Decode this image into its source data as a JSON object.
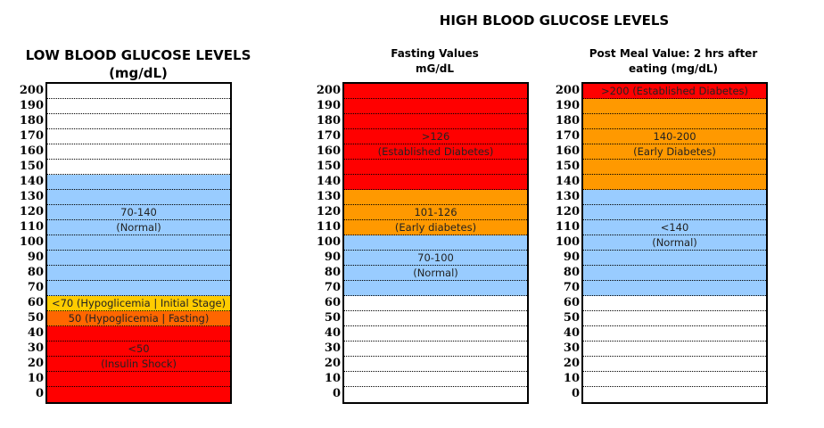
{
  "titles": {
    "main": "HIGH BLOOD GLUCOSE LEVELS",
    "low_line1": "LOW BLOOD GLUCOSE LEVELS",
    "low_line2": "(mg/dL)",
    "fasting_line1": "Fasting Values",
    "fasting_line2": "mG/dL",
    "post_line1": "Post Meal Value: 2 hrs after",
    "post_line2": "eating (mg/dL)"
  },
  "colors": {
    "red": "#ff0000",
    "orange": "#ff9900",
    "blue": "#99ccff",
    "yellow": "#ffcc00",
    "dark_orange": "#ff6600",
    "white": "#ffffff"
  },
  "scale": [
    "200",
    "190",
    "180",
    "170",
    "160",
    "150",
    "140",
    "130",
    "120",
    "110",
    "100",
    "90",
    "80",
    "70",
    "60",
    "50",
    "40",
    "30",
    "20",
    "10",
    "0"
  ],
  "columns": [
    {
      "name": "low",
      "cells": [
        {
          "c": "white",
          "t": ""
        },
        {
          "c": "white",
          "t": ""
        },
        {
          "c": "white",
          "t": ""
        },
        {
          "c": "white",
          "t": ""
        },
        {
          "c": "white",
          "t": ""
        },
        {
          "c": "white",
          "t": ""
        },
        {
          "c": "blue",
          "t": ""
        },
        {
          "c": "blue",
          "t": ""
        },
        {
          "c": "blue",
          "t": "70-140"
        },
        {
          "c": "blue",
          "t": "(Normal)"
        },
        {
          "c": "blue",
          "t": ""
        },
        {
          "c": "blue",
          "t": ""
        },
        {
          "c": "blue",
          "t": ""
        },
        {
          "c": "blue",
          "t": ""
        },
        {
          "c": "yellow",
          "t": "<70 (Hypoglicemia | Initial Stage)"
        },
        {
          "c": "dark_orange",
          "t": "50 (Hypoglicemia | Fasting)"
        },
        {
          "c": "red",
          "t": ""
        },
        {
          "c": "red",
          "t": "<50"
        },
        {
          "c": "red",
          "t": "(Insulin Shock)"
        },
        {
          "c": "red",
          "t": ""
        },
        {
          "c": "red",
          "t": ""
        }
      ]
    },
    {
      "name": "fasting",
      "cells": [
        {
          "c": "red",
          "t": ""
        },
        {
          "c": "red",
          "t": ""
        },
        {
          "c": "red",
          "t": ""
        },
        {
          "c": "red",
          "t": ">126"
        },
        {
          "c": "red",
          "t": "(Established Diabetes)"
        },
        {
          "c": "red",
          "t": ""
        },
        {
          "c": "red",
          "t": ""
        },
        {
          "c": "orange",
          "t": ""
        },
        {
          "c": "orange",
          "t": "101-126"
        },
        {
          "c": "orange",
          "t": "(Early diabetes)"
        },
        {
          "c": "blue",
          "t": ""
        },
        {
          "c": "blue",
          "t": "70-100"
        },
        {
          "c": "blue",
          "t": "(Normal)"
        },
        {
          "c": "blue",
          "t": ""
        },
        {
          "c": "white",
          "t": ""
        },
        {
          "c": "white",
          "t": ""
        },
        {
          "c": "white",
          "t": ""
        },
        {
          "c": "white",
          "t": ""
        },
        {
          "c": "white",
          "t": ""
        },
        {
          "c": "white",
          "t": ""
        },
        {
          "c": "white",
          "t": ""
        }
      ]
    },
    {
      "name": "post-meal",
      "cells": [
        {
          "c": "red",
          "t": ">200 (Established Diabetes)"
        },
        {
          "c": "orange",
          "t": ""
        },
        {
          "c": "orange",
          "t": ""
        },
        {
          "c": "orange",
          "t": "140-200"
        },
        {
          "c": "orange",
          "t": "(Early Diabetes)"
        },
        {
          "c": "orange",
          "t": ""
        },
        {
          "c": "orange",
          "t": ""
        },
        {
          "c": "blue",
          "t": ""
        },
        {
          "c": "blue",
          "t": ""
        },
        {
          "c": "blue",
          "t": "<140"
        },
        {
          "c": "blue",
          "t": "(Normal)"
        },
        {
          "c": "blue",
          "t": ""
        },
        {
          "c": "blue",
          "t": ""
        },
        {
          "c": "blue",
          "t": ""
        },
        {
          "c": "white",
          "t": ""
        },
        {
          "c": "white",
          "t": ""
        },
        {
          "c": "white",
          "t": ""
        },
        {
          "c": "white",
          "t": ""
        },
        {
          "c": "white",
          "t": ""
        },
        {
          "c": "white",
          "t": ""
        },
        {
          "c": "white",
          "t": ""
        }
      ]
    }
  ]
}
